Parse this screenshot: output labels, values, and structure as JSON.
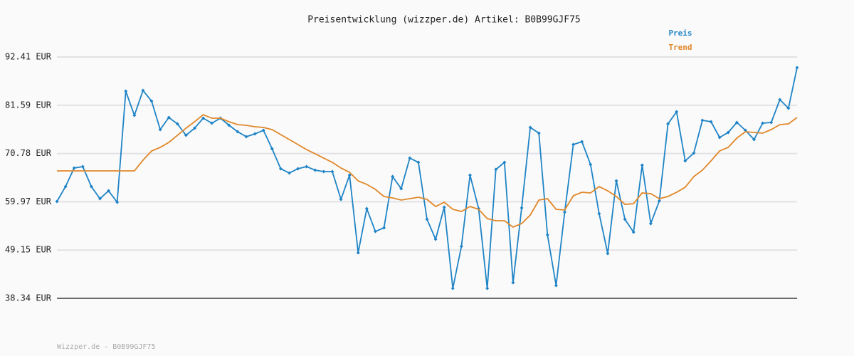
{
  "chart_data": {
    "type": "line",
    "title": "Preisentwicklung (wizzper.de) Artikel: B0B99GJF75",
    "footer": "Wizzper.de - B0B99GJF75",
    "legend": "top-right",
    "grid": true,
    "ylim": [
      38.34,
      92.41
    ],
    "yticks": [
      {
        "value": 38.34,
        "label": "38.34 EUR"
      },
      {
        "value": 49.15,
        "label": "49.15 EUR"
      },
      {
        "value": 59.97,
        "label": "59.97 EUR"
      },
      {
        "value": 70.78,
        "label": "70.78 EUR"
      },
      {
        "value": 81.59,
        "label": "81.59 EUR"
      },
      {
        "value": 92.41,
        "label": "92.41 EUR"
      }
    ],
    "series": [
      {
        "name": "Preis",
        "color": "#1f84c6",
        "markers": true,
        "values": [
          60.03,
          63.38,
          67.53,
          67.85,
          63.38,
          60.67,
          62.42,
          59.87,
          84.75,
          79.33,
          84.91,
          82.52,
          76.14,
          78.85,
          77.42,
          74.86,
          76.46,
          78.69,
          77.58,
          78.69,
          77.1,
          75.66,
          74.55,
          75.18,
          75.98,
          71.83,
          67.37,
          66.41,
          67.37,
          67.85,
          67.05,
          66.73,
          66.73,
          60.51,
          65.93,
          48.55,
          58.44,
          53.33,
          54.13,
          65.61,
          62.9,
          69.76,
          68.8,
          56.04,
          51.58,
          58.76,
          40.57,
          49.98,
          65.93,
          58.44,
          40.57,
          67.21,
          68.8,
          41.85,
          58.6,
          76.62,
          75.34,
          52.53,
          41.21,
          57.64,
          72.79,
          73.43,
          68.33,
          57.32,
          48.39,
          64.66,
          56.04,
          53.17,
          68.17,
          55.09,
          60.19,
          77.42,
          80.13,
          69.12,
          70.88,
          78.21,
          77.9,
          74.39,
          75.5,
          77.74,
          75.98,
          73.91,
          77.58,
          77.74,
          82.84,
          80.93,
          90.02
        ]
      },
      {
        "name": "Trend",
        "color": "#e0882a",
        "markers": false,
        "values": [
          66.89,
          66.89,
          66.89,
          66.89,
          66.89,
          66.89,
          66.89,
          66.89,
          66.89,
          66.89,
          69.28,
          71.36,
          72.15,
          73.27,
          74.86,
          76.46,
          77.9,
          79.49,
          78.69,
          78.69,
          77.9,
          77.26,
          77.1,
          76.78,
          76.62,
          76.14,
          75.02,
          73.91,
          72.79,
          71.67,
          70.72,
          69.76,
          68.8,
          67.53,
          66.57,
          64.66,
          63.86,
          62.74,
          61.15,
          60.83,
          60.35,
          60.67,
          60.99,
          60.51,
          58.91,
          59.87,
          58.28,
          57.8,
          58.91,
          58.28,
          56.2,
          55.72,
          55.72,
          54.29,
          55.09,
          57.0,
          60.35,
          60.67,
          58.28,
          58.12,
          61.31,
          62.1,
          61.95,
          63.38,
          62.42,
          61.15,
          59.39,
          59.55,
          61.95,
          61.79,
          60.67,
          61.15,
          62.1,
          63.22,
          65.61,
          67.05,
          69.12,
          71.36,
          72.15,
          74.23,
          75.66,
          75.5,
          75.34,
          76.14,
          77.26,
          77.42,
          78.85
        ]
      }
    ]
  }
}
